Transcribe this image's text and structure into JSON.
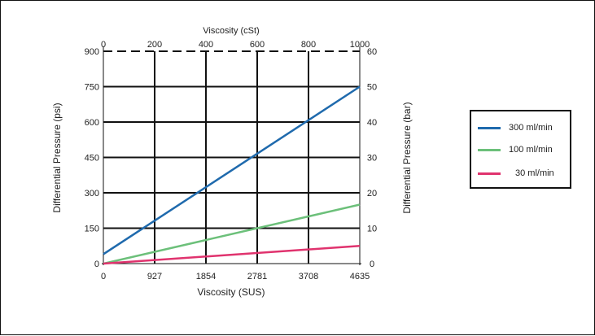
{
  "chart_data": {
    "type": "line",
    "x_bottom_label": "Viscosity (SUS)",
    "x_top_label": "Viscosity (cSt)",
    "y_left_label": "Differential Pressure (psi)",
    "y_right_label": "Differential Pressure (bar)",
    "x_bottom_ticks": [
      "0",
      "927",
      "1854",
      "2781",
      "3708",
      "4635"
    ],
    "x_top_ticks": [
      "0",
      "200",
      "400",
      "600",
      "800",
      "1000"
    ],
    "y_left_ticks": [
      "0",
      "150",
      "300",
      "450",
      "600",
      "750",
      "900"
    ],
    "y_right_ticks": [
      "0",
      "10",
      "20",
      "30",
      "40",
      "50",
      "60"
    ],
    "xlim_cst": [
      0,
      1000
    ],
    "ylim_psi": [
      0,
      900
    ],
    "ylim_bar": [
      0,
      60
    ],
    "grid": true,
    "legend_position": "right",
    "series": [
      {
        "name": "300 ml/min",
        "color": "#1f6aad",
        "x_cst": [
          0,
          1000
        ],
        "y_psi": [
          40,
          750
        ]
      },
      {
        "name": "100 ml/min",
        "color": "#6cc07a",
        "x_cst": [
          0,
          1000
        ],
        "y_psi": [
          0,
          250
        ]
      },
      {
        "name": "30 ml/min",
        "color": "#e0336e",
        "x_cst": [
          0,
          1000
        ],
        "y_psi": [
          0,
          75
        ]
      }
    ]
  }
}
